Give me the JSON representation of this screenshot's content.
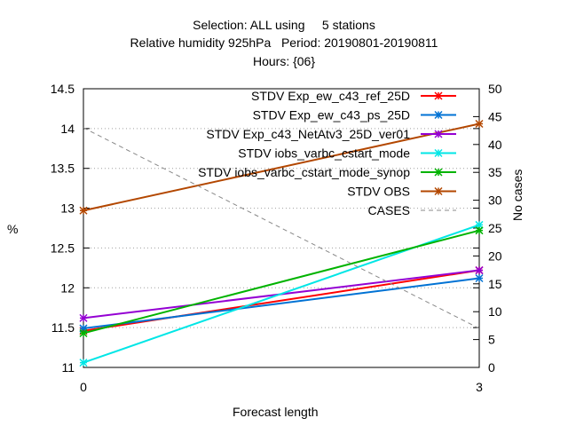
{
  "chart_data": {
    "type": "line",
    "title_lines": [
      "Selection: ALL using     5 stations",
      "Relative humidity 925hPa   Period: 20190801-20190811",
      "Hours: {06}"
    ],
    "xlabel": "Forecast length",
    "ylabel": "%",
    "y2label": "No cases",
    "x": [
      0,
      3
    ],
    "x_ticks": [
      "0",
      "3"
    ],
    "xlim": [
      0,
      3
    ],
    "ylim": [
      11,
      14.5
    ],
    "y_ticks": [
      "11",
      "11.5",
      "12",
      "12.5",
      "13",
      "13.5",
      "14",
      "14.5"
    ],
    "y2lim": [
      0,
      50
    ],
    "y2_ticks": [
      "0",
      "5",
      "10",
      "15",
      "20",
      "25",
      "30",
      "35",
      "40",
      "45",
      "50"
    ],
    "grid": true,
    "legend_position": "top-right inside",
    "series": [
      {
        "name": "STDV Exp_ew_c43_ref_25D",
        "values": [
          11.46,
          12.22
        ],
        "color": "#ff0000",
        "axis": "y"
      },
      {
        "name": "STDV Exp_ew_c43_ps_25D",
        "values": [
          11.49,
          12.12
        ],
        "color": "#0072d4",
        "axis": "y"
      },
      {
        "name": "STDV Exp_c43_NetAtv3_25D_ver01",
        "values": [
          11.62,
          12.22
        ],
        "color": "#9400d3",
        "axis": "y"
      },
      {
        "name": "STDV iobs_varbc_cstart_mode",
        "values": [
          11.06,
          12.79
        ],
        "color": "#00e6e6",
        "axis": "y"
      },
      {
        "name": "STDV iobs_varbc_cstart_mode_synop",
        "values": [
          11.43,
          12.72
        ],
        "color": "#00b300",
        "axis": "y"
      },
      {
        "name": "STDV OBS",
        "values": [
          12.97,
          14.06
        ],
        "color": "#b34700",
        "axis": "y"
      },
      {
        "name": "CASES",
        "values": [
          43,
          7
        ],
        "color": "#888888",
        "axis": "y2",
        "dashed": true
      }
    ]
  }
}
